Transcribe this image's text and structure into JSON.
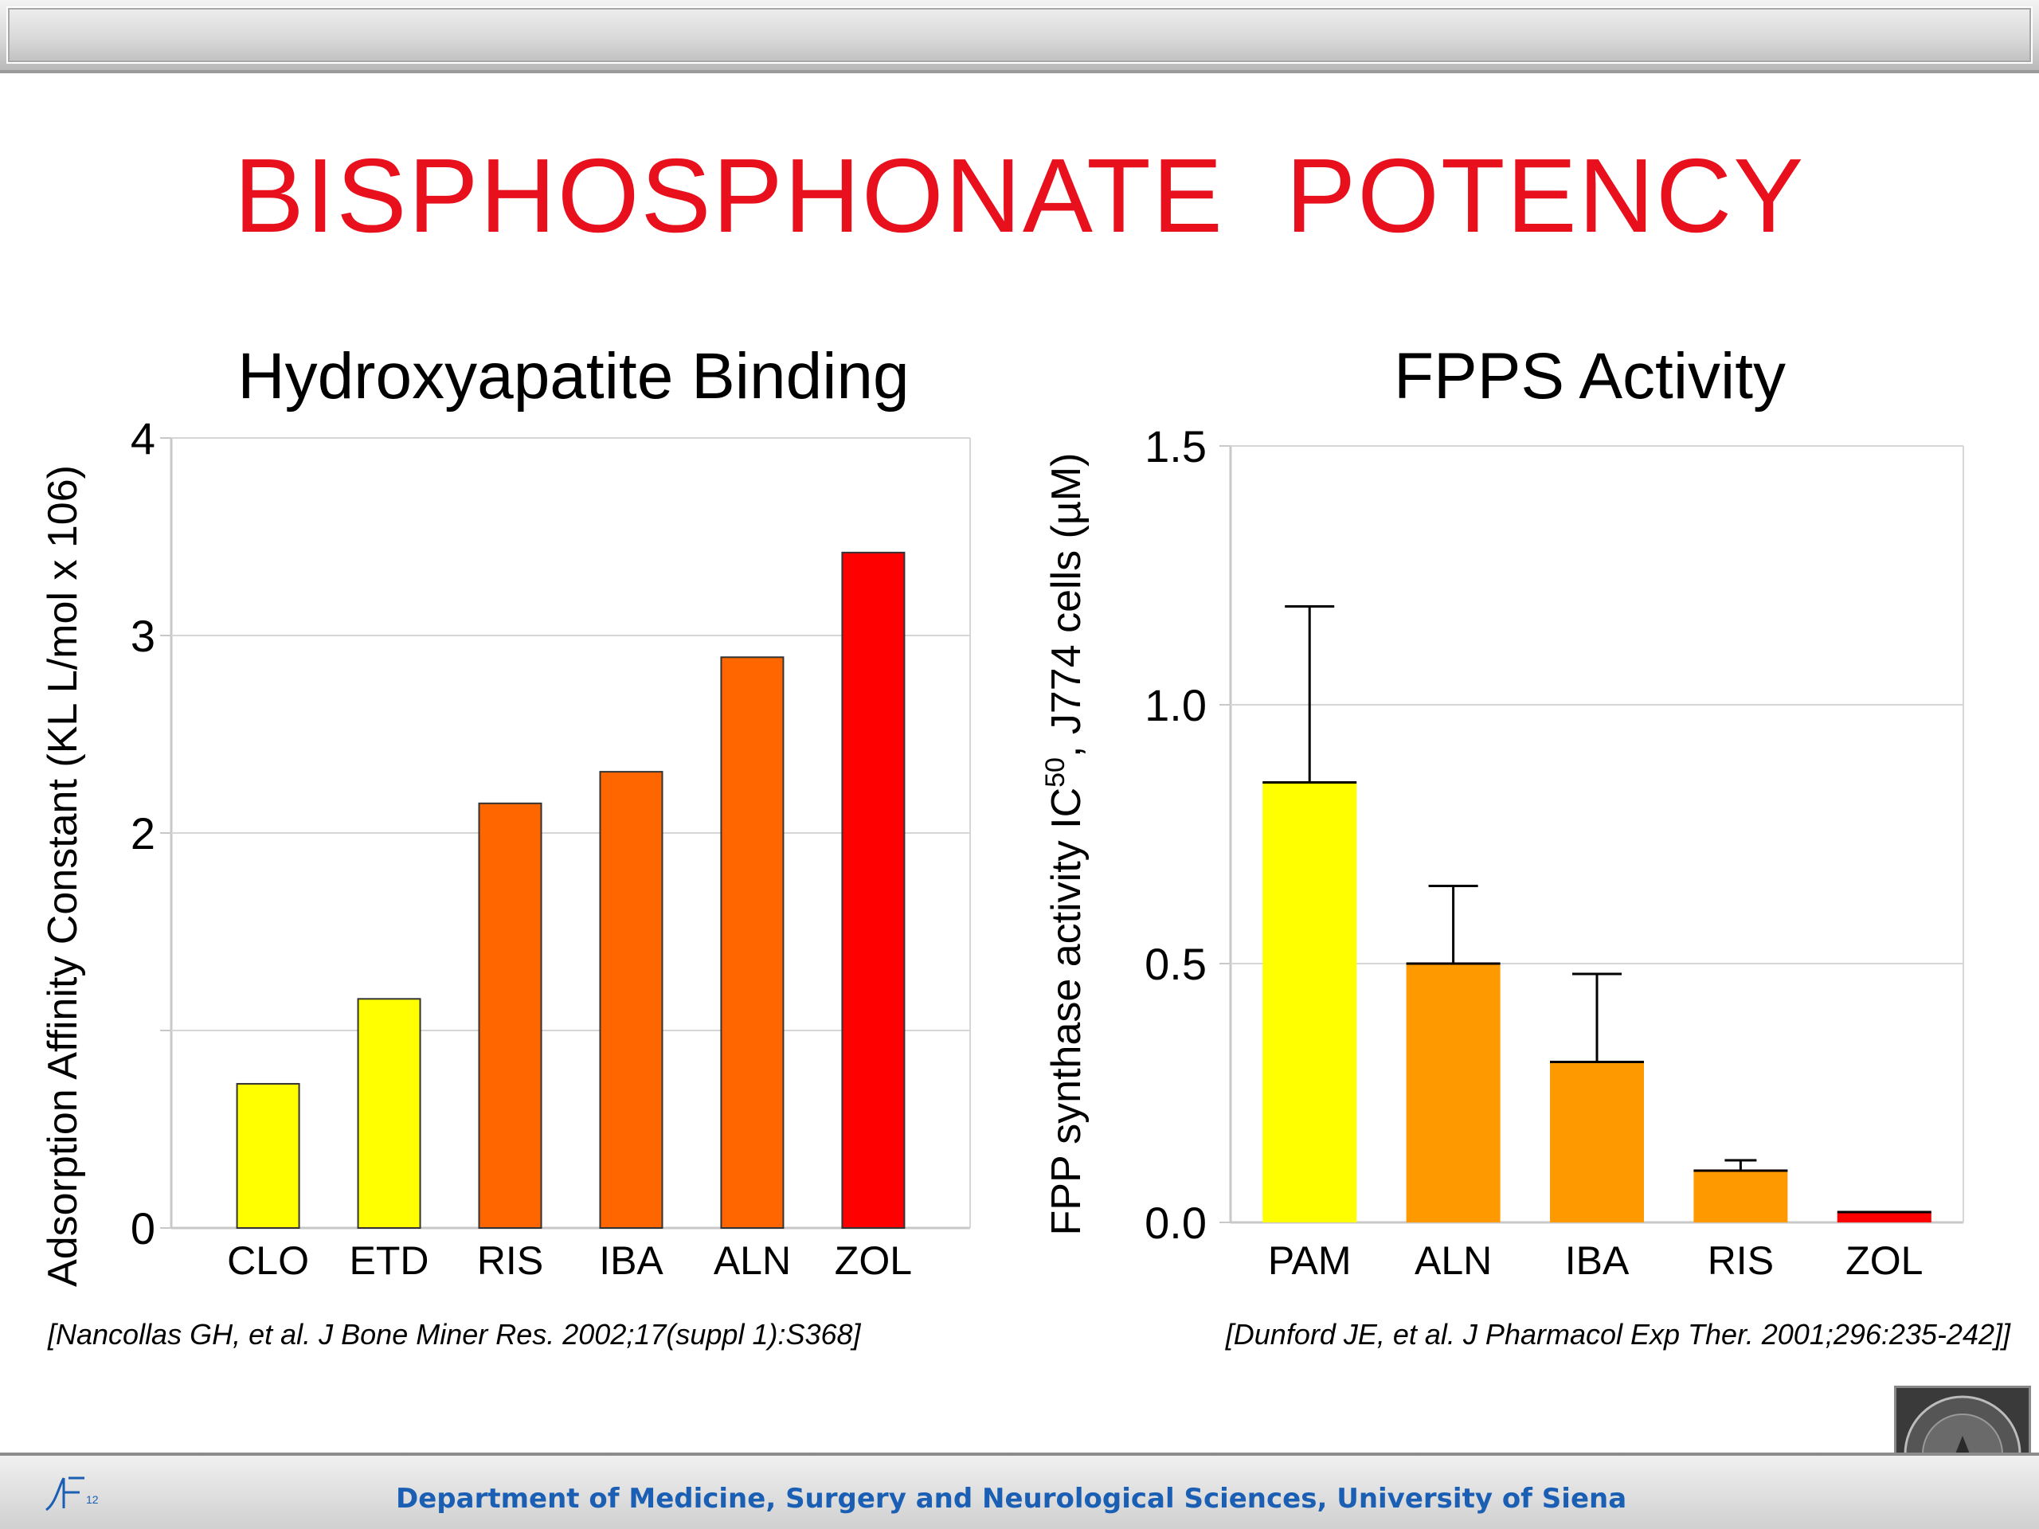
{
  "slide": {
    "title": "BISPHOSPHONATE  POTENCY",
    "title_color": "#e8101c",
    "footer_text": "Department of Medicine, Surgery and Neurological Sciences, University of Siena",
    "footer_color": "#1a5fb4",
    "page_number": "12"
  },
  "citations": {
    "left": "[Nancollas GH, et al. J Bone Miner Res. 2002;17(suppl 1):S368]",
    "right": "[Dunford JE, et al. J Pharmacol Exp Ther. 2001;296:235-242]]"
  },
  "chart_data": [
    {
      "type": "bar",
      "title": "Hydroxyapatite Binding",
      "xlabel": "",
      "ylabel": "Adsorption Affinity Constant (KL L/mol x 106)",
      "categories": [
        "CLO",
        "ETD",
        "RIS",
        "IBA",
        "ALN",
        "ZOL"
      ],
      "values": [
        0.73,
        1.16,
        2.15,
        2.31,
        2.89,
        3.42
      ],
      "colors": [
        "#ffff00",
        "#ffff00",
        "#ff6600",
        "#ff6600",
        "#ff6600",
        "#ff0000"
      ],
      "ylim": [
        0,
        4
      ],
      "yticks": [
        0,
        1,
        2,
        3,
        4
      ],
      "ytick_labels": [
        "0",
        "",
        "2",
        "3",
        "4"
      ],
      "grid": true,
      "legend": "none"
    },
    {
      "type": "bar",
      "title": "FPPS Activity",
      "xlabel": "",
      "ylabel": "FPP synthase activity IC50, J774 cells (µM)",
      "ylabel_parts": [
        "FPP synthase activity IC",
        "50",
        ", J774 cells (µM)"
      ],
      "categories": [
        "PAM",
        "ALN",
        "IBA",
        "RIS",
        "ZOL"
      ],
      "values": [
        0.85,
        0.5,
        0.31,
        0.1,
        0.02
      ],
      "errors": [
        0.34,
        0.15,
        0.17,
        0.02,
        0
      ],
      "colors": [
        "#ffff00",
        "#ff9900",
        "#ff9900",
        "#ff9900",
        "#ff0000"
      ],
      "ylim": [
        0,
        1.5
      ],
      "yticks": [
        0,
        0.5,
        1,
        1.5
      ],
      "ytick_labels": [
        "0.0",
        "0.5",
        "1.0",
        "1.5"
      ],
      "grid": true,
      "legend": "none"
    }
  ]
}
